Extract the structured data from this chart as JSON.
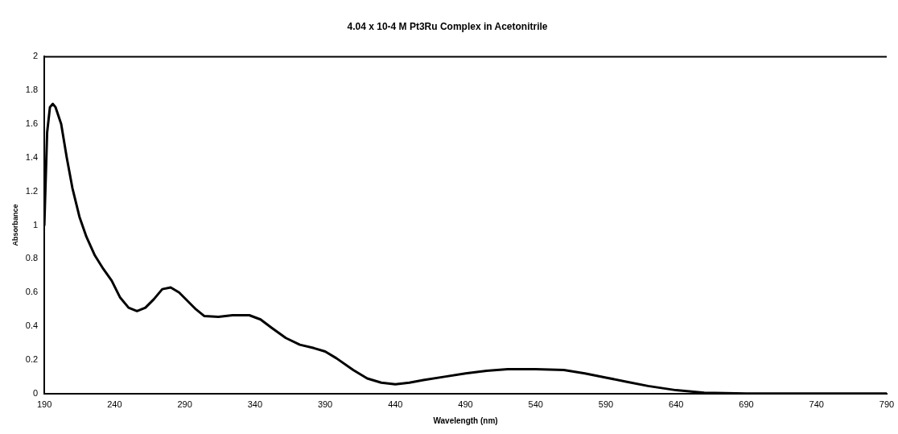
{
  "chart_data": {
    "type": "line",
    "title": "4.04 x 10-4 M Pt3Ru Complex in Acetonitrile",
    "xlabel": "Wavelength (nm)",
    "ylabel": "Absorbance",
    "xlim": [
      190,
      790
    ],
    "xticks": [
      190,
      240,
      290,
      340,
      390,
      440,
      490,
      540,
      590,
      640,
      690,
      740,
      790
    ],
    "ylim": [
      0,
      2
    ],
    "yticks": [
      0,
      0.2,
      0.4,
      0.6,
      0.8,
      1,
      1.2,
      1.4,
      1.6,
      1.8,
      2
    ],
    "grid": false,
    "legend": false,
    "marker": "none",
    "line_style": "solid",
    "series": [
      {
        "color": "#000000",
        "x": [
          190,
          192,
          194,
          196,
          198,
          202,
          206,
          210,
          215,
          220,
          226,
          232,
          238,
          244,
          250,
          256,
          262,
          268,
          274,
          280,
          286,
          292,
          298,
          304,
          314,
          324,
          336,
          344,
          352,
          362,
          372,
          382,
          390,
          398,
          410,
          420,
          430,
          440,
          450,
          460,
          475,
          490,
          505,
          520,
          540,
          560,
          575,
          590,
          605,
          620,
          640,
          660,
          690,
          740,
          790
        ],
        "values": [
          1.0,
          1.55,
          1.7,
          1.72,
          1.7,
          1.6,
          1.4,
          1.22,
          1.05,
          0.93,
          0.82,
          0.74,
          0.67,
          0.57,
          0.51,
          0.49,
          0.51,
          0.56,
          0.62,
          0.63,
          0.6,
          0.55,
          0.5,
          0.46,
          0.455,
          0.465,
          0.465,
          0.44,
          0.39,
          0.33,
          0.29,
          0.27,
          0.25,
          0.21,
          0.14,
          0.09,
          0.065,
          0.055,
          0.065,
          0.08,
          0.1,
          0.12,
          0.135,
          0.145,
          0.145,
          0.14,
          0.12,
          0.095,
          0.07,
          0.045,
          0.02,
          0.005,
          0,
          0,
          0
        ]
      }
    ]
  }
}
